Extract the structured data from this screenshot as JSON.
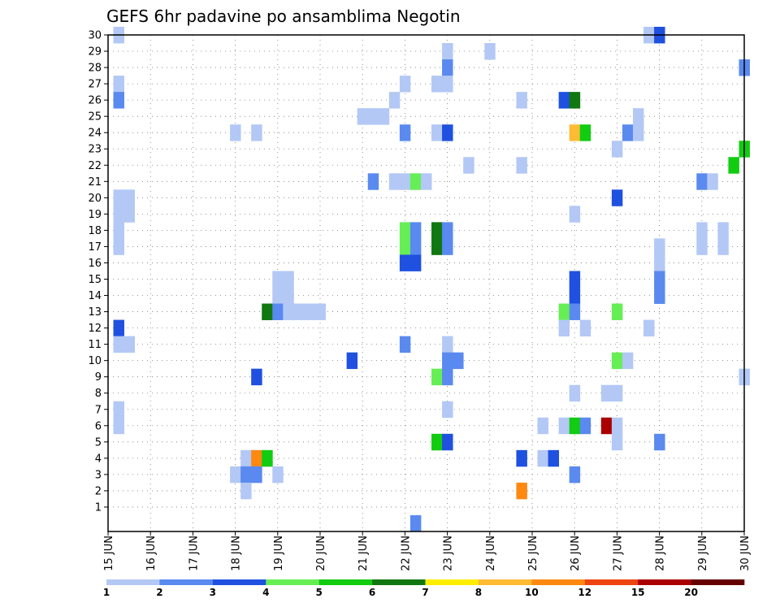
{
  "chart_data": {
    "type": "heatmap",
    "title": "GEFS 6hr padavine po ansamblima Negotin",
    "y_ticks": [
      "1",
      "2",
      "3",
      "4",
      "5",
      "6",
      "7",
      "8",
      "9",
      "10",
      "11",
      "12",
      "13",
      "14",
      "15",
      "16",
      "17",
      "18",
      "19",
      "20",
      "21",
      "22",
      "23",
      "24",
      "25",
      "26",
      "27",
      "28",
      "29",
      "30"
    ],
    "x_ticks": [
      "15 JUN",
      "16 JUN",
      "17 JUN",
      "18 JUN",
      "19 JUN",
      "20 JUN",
      "21 JUN",
      "22 JUN",
      "23 JUN",
      "24 JUN",
      "25 JUN",
      "26 JUN",
      "27 JUN",
      "28 JUN",
      "29 JUN",
      "30 JUN"
    ],
    "x_range": [
      "15 JUN 00z",
      "30 JUN 00z"
    ],
    "y_range": [
      0,
      30
    ],
    "time_step_hours": 6,
    "grid": "dotted",
    "colorbar": {
      "labels": [
        "1",
        "2",
        "3",
        "4",
        "5",
        "6",
        "7",
        "8",
        "10",
        "12",
        "15",
        "20"
      ],
      "colors": [
        "#b3c8f5",
        "#5a8af0",
        "#1f50e0",
        "#66ee55",
        "#11cc11",
        "#117711",
        "#ffee00",
        "#ffbb33",
        "#ff8811",
        "#ee4411",
        "#aa0000",
        "#660000"
      ]
    },
    "cells": [
      {
        "member": 30,
        "time": "15 JUN 06z",
        "color": "#b3c8f5"
      },
      {
        "member": 30,
        "time": "27 JUN 18z",
        "color": "#b3c8f5"
      },
      {
        "member": 30,
        "time": "28 JUN 00z",
        "color": "#1f50e0"
      },
      {
        "member": 29,
        "time": "23 JUN 00z",
        "color": "#b3c8f5"
      },
      {
        "member": 29,
        "time": "24 JUN 00z",
        "color": "#b3c8f5"
      },
      {
        "member": 28,
        "time": "23 JUN 00z",
        "color": "#5a8af0"
      },
      {
        "member": 28,
        "time": "30 JUN 00z",
        "color": "#5a8af0"
      },
      {
        "member": 27,
        "time": "15 JUN 06z",
        "color": "#b3c8f5"
      },
      {
        "member": 27,
        "time": "22 JUN 00z",
        "color": "#b3c8f5"
      },
      {
        "member": 27,
        "time": "22 JUN 18z",
        "color": "#b3c8f5"
      },
      {
        "member": 27,
        "time": "23 JUN 00z",
        "color": "#b3c8f5"
      },
      {
        "member": 26,
        "time": "15 JUN 06z",
        "color": "#5a8af0"
      },
      {
        "member": 26,
        "time": "21 JUN 18z",
        "color": "#b3c8f5"
      },
      {
        "member": 26,
        "time": "24 JUN 18z",
        "color": "#b3c8f5"
      },
      {
        "member": 26,
        "time": "25 JUN 18z",
        "color": "#1f50e0"
      },
      {
        "member": 26,
        "time": "26 JUN 00z",
        "color": "#117711"
      },
      {
        "member": 25,
        "time": "21 JUN 00z",
        "color": "#b3c8f5"
      },
      {
        "member": 25,
        "time": "21 JUN 06z",
        "color": "#b3c8f5"
      },
      {
        "member": 25,
        "time": "21 JUN 12z",
        "color": "#b3c8f5"
      },
      {
        "member": 25,
        "time": "27 JUN 12z",
        "color": "#b3c8f5"
      },
      {
        "member": 24,
        "time": "18 JUN 00z",
        "color": "#b3c8f5"
      },
      {
        "member": 24,
        "time": "18 JUN 12z",
        "color": "#b3c8f5"
      },
      {
        "member": 24,
        "time": "22 JUN 00z",
        "color": "#5a8af0"
      },
      {
        "member": 24,
        "time": "22 JUN 18z",
        "color": "#b3c8f5"
      },
      {
        "member": 24,
        "time": "23 JUN 00z",
        "color": "#1f50e0"
      },
      {
        "member": 24,
        "time": "26 JUN 00z",
        "color": "#ffbb33"
      },
      {
        "member": 24,
        "time": "26 JUN 06z",
        "color": "#11cc11"
      },
      {
        "member": 24,
        "time": "27 JUN 06z",
        "color": "#5a8af0"
      },
      {
        "member": 24,
        "time": "27 JUN 12z",
        "color": "#b3c8f5"
      },
      {
        "member": 23,
        "time": "27 JUN 00z",
        "color": "#b3c8f5"
      },
      {
        "member": 23,
        "time": "30 JUN 00z",
        "color": "#11cc11"
      },
      {
        "member": 22,
        "time": "23 JUN 12z",
        "color": "#b3c8f5"
      },
      {
        "member": 22,
        "time": "24 JUN 18z",
        "color": "#b3c8f5"
      },
      {
        "member": 22,
        "time": "29 JUN 18z",
        "color": "#11cc11"
      },
      {
        "member": 21,
        "time": "21 JUN 06z",
        "color": "#5a8af0"
      },
      {
        "member": 21,
        "time": "21 JUN 18z",
        "color": "#b3c8f5"
      },
      {
        "member": 21,
        "time": "22 JUN 00z",
        "color": "#b3c8f5"
      },
      {
        "member": 21,
        "time": "22 JUN 06z",
        "color": "#66ee55"
      },
      {
        "member": 21,
        "time": "22 JUN 12z",
        "color": "#b3c8f5"
      },
      {
        "member": 21,
        "time": "29 JUN 00z",
        "color": "#5a8af0"
      },
      {
        "member": 21,
        "time": "29 JUN 06z",
        "color": "#b3c8f5"
      },
      {
        "member": 20,
        "time": "15 JUN 06z",
        "color": "#b3c8f5"
      },
      {
        "member": 20,
        "time": "15 JUN 12z",
        "color": "#b3c8f5"
      },
      {
        "member": 20,
        "time": "27 JUN 00z",
        "color": "#1f50e0"
      },
      {
        "member": 19,
        "time": "15 JUN 06z",
        "color": "#b3c8f5"
      },
      {
        "member": 19,
        "time": "15 JUN 12z",
        "color": "#b3c8f5"
      },
      {
        "member": 19,
        "time": "26 JUN 00z",
        "color": "#b3c8f5"
      },
      {
        "member": 18,
        "time": "15 JUN 06z",
        "color": "#b3c8f5"
      },
      {
        "member": 18,
        "time": "22 JUN 00z",
        "color": "#66ee55"
      },
      {
        "member": 18,
        "time": "22 JUN 06z",
        "color": "#5a8af0"
      },
      {
        "member": 18,
        "time": "22 JUN 18z",
        "color": "#117711"
      },
      {
        "member": 18,
        "time": "23 JUN 00z",
        "color": "#5a8af0"
      },
      {
        "member": 18,
        "time": "29 JUN 00z",
        "color": "#b3c8f5"
      },
      {
        "member": 18,
        "time": "29 JUN 12z",
        "color": "#b3c8f5"
      },
      {
        "member": 17,
        "time": "15 JUN 06z",
        "color": "#b3c8f5"
      },
      {
        "member": 17,
        "time": "22 JUN 00z",
        "color": "#66ee55"
      },
      {
        "member": 17,
        "time": "22 JUN 06z",
        "color": "#5a8af0"
      },
      {
        "member": 17,
        "time": "22 JUN 18z",
        "color": "#117711"
      },
      {
        "member": 17,
        "time": "23 JUN 00z",
        "color": "#5a8af0"
      },
      {
        "member": 17,
        "time": "28 JUN 00z",
        "color": "#b3c8f5"
      },
      {
        "member": 17,
        "time": "29 JUN 00z",
        "color": "#b3c8f5"
      },
      {
        "member": 17,
        "time": "29 JUN 12z",
        "color": "#b3c8f5"
      },
      {
        "member": 16,
        "time": "22 JUN 00z",
        "color": "#1f50e0"
      },
      {
        "member": 16,
        "time": "22 JUN 06z",
        "color": "#1f50e0"
      },
      {
        "member": 16,
        "time": "28 JUN 00z",
        "color": "#b3c8f5"
      },
      {
        "member": 15,
        "time": "19 JUN 00z",
        "color": "#b3c8f5"
      },
      {
        "member": 15,
        "time": "19 JUN 06z",
        "color": "#b3c8f5"
      },
      {
        "member": 15,
        "time": "26 JUN 00z",
        "color": "#1f50e0"
      },
      {
        "member": 15,
        "time": "28 JUN 00z",
        "color": "#5a8af0"
      },
      {
        "member": 14,
        "time": "19 JUN 00z",
        "color": "#b3c8f5"
      },
      {
        "member": 14,
        "time": "19 JUN 06z",
        "color": "#b3c8f5"
      },
      {
        "member": 14,
        "time": "26 JUN 00z",
        "color": "#1f50e0"
      },
      {
        "member": 14,
        "time": "28 JUN 00z",
        "color": "#5a8af0"
      },
      {
        "member": 13,
        "time": "18 JUN 18z",
        "color": "#117711"
      },
      {
        "member": 13,
        "time": "19 JUN 00z",
        "color": "#5a8af0"
      },
      {
        "member": 13,
        "time": "19 JUN 06z",
        "color": "#b3c8f5"
      },
      {
        "member": 13,
        "time": "19 JUN 12z",
        "color": "#b3c8f5"
      },
      {
        "member": 13,
        "time": "19 JUN 18z",
        "color": "#b3c8f5"
      },
      {
        "member": 13,
        "time": "20 JUN 00z",
        "color": "#b3c8f5"
      },
      {
        "member": 13,
        "time": "25 JUN 18z",
        "color": "#66ee55"
      },
      {
        "member": 13,
        "time": "26 JUN 00z",
        "color": "#5a8af0"
      },
      {
        "member": 13,
        "time": "27 JUN 00z",
        "color": "#66ee55"
      },
      {
        "member": 12,
        "time": "15 JUN 06z",
        "color": "#1f50e0"
      },
      {
        "member": 12,
        "time": "25 JUN 18z",
        "color": "#b3c8f5"
      },
      {
        "member": 12,
        "time": "26 JUN 06z",
        "color": "#b3c8f5"
      },
      {
        "member": 12,
        "time": "27 JUN 18z",
        "color": "#b3c8f5"
      },
      {
        "member": 11,
        "time": "15 JUN 06z",
        "color": "#b3c8f5"
      },
      {
        "member": 11,
        "time": "15 JUN 12z",
        "color": "#b3c8f5"
      },
      {
        "member": 11,
        "time": "22 JUN 00z",
        "color": "#5a8af0"
      },
      {
        "member": 11,
        "time": "23 JUN 00z",
        "color": "#b3c8f5"
      },
      {
        "member": 10,
        "time": "20 JUN 18z",
        "color": "#1f50e0"
      },
      {
        "member": 10,
        "time": "23 JUN 00z",
        "color": "#5a8af0"
      },
      {
        "member": 10,
        "time": "23 JUN 06z",
        "color": "#5a8af0"
      },
      {
        "member": 10,
        "time": "27 JUN 00z",
        "color": "#66ee55"
      },
      {
        "member": 10,
        "time": "27 JUN 06z",
        "color": "#b3c8f5"
      },
      {
        "member": 9,
        "time": "18 JUN 12z",
        "color": "#1f50e0"
      },
      {
        "member": 9,
        "time": "22 JUN 18z",
        "color": "#66ee55"
      },
      {
        "member": 9,
        "time": "23 JUN 00z",
        "color": "#5a8af0"
      },
      {
        "member": 9,
        "time": "30 JUN 00z",
        "color": "#b3c8f5"
      },
      {
        "member": 8,
        "time": "26 JUN 00z",
        "color": "#b3c8f5"
      },
      {
        "member": 8,
        "time": "26 JUN 18z",
        "color": "#b3c8f5"
      },
      {
        "member": 8,
        "time": "27 JUN 00z",
        "color": "#b3c8f5"
      },
      {
        "member": 7,
        "time": "15 JUN 06z",
        "color": "#b3c8f5"
      },
      {
        "member": 7,
        "time": "23 JUN 00z",
        "color": "#b3c8f5"
      },
      {
        "member": 6,
        "time": "15 JUN 06z",
        "color": "#b3c8f5"
      },
      {
        "member": 6,
        "time": "25 JUN 06z",
        "color": "#b3c8f5"
      },
      {
        "member": 6,
        "time": "25 JUN 18z",
        "color": "#b3c8f5"
      },
      {
        "member": 6,
        "time": "26 JUN 00z",
        "color": "#11cc11"
      },
      {
        "member": 6,
        "time": "26 JUN 06z",
        "color": "#5a8af0"
      },
      {
        "member": 6,
        "time": "26 JUN 18z",
        "color": "#aa0000"
      },
      {
        "member": 6,
        "time": "27 JUN 00z",
        "color": "#b3c8f5"
      },
      {
        "member": 5,
        "time": "22 JUN 18z",
        "color": "#11cc11"
      },
      {
        "member": 5,
        "time": "23 JUN 00z",
        "color": "#1f50e0"
      },
      {
        "member": 5,
        "time": "27 JUN 00z",
        "color": "#b3c8f5"
      },
      {
        "member": 5,
        "time": "28 JUN 00z",
        "color": "#5a8af0"
      },
      {
        "member": 4,
        "time": "18 JUN 06z",
        "color": "#b3c8f5"
      },
      {
        "member": 4,
        "time": "18 JUN 12z",
        "color": "#ff8811"
      },
      {
        "member": 4,
        "time": "18 JUN 18z",
        "color": "#11cc11"
      },
      {
        "member": 4,
        "time": "24 JUN 18z",
        "color": "#1f50e0"
      },
      {
        "member": 4,
        "time": "25 JUN 06z",
        "color": "#b3c8f5"
      },
      {
        "member": 4,
        "time": "25 JUN 12z",
        "color": "#1f50e0"
      },
      {
        "member": 3,
        "time": "18 JUN 00z",
        "color": "#b3c8f5"
      },
      {
        "member": 3,
        "time": "18 JUN 06z",
        "color": "#5a8af0"
      },
      {
        "member": 3,
        "time": "18 JUN 12z",
        "color": "#5a8af0"
      },
      {
        "member": 3,
        "time": "19 JUN 00z",
        "color": "#b3c8f5"
      },
      {
        "member": 3,
        "time": "26 JUN 00z",
        "color": "#5a8af0"
      },
      {
        "member": 2,
        "time": "18 JUN 06z",
        "color": "#b3c8f5"
      },
      {
        "member": 2,
        "time": "24 JUN 18z",
        "color": "#ff8811"
      },
      {
        "member": 0,
        "time": "22 JUN 06z",
        "color": "#5a8af0"
      }
    ]
  }
}
